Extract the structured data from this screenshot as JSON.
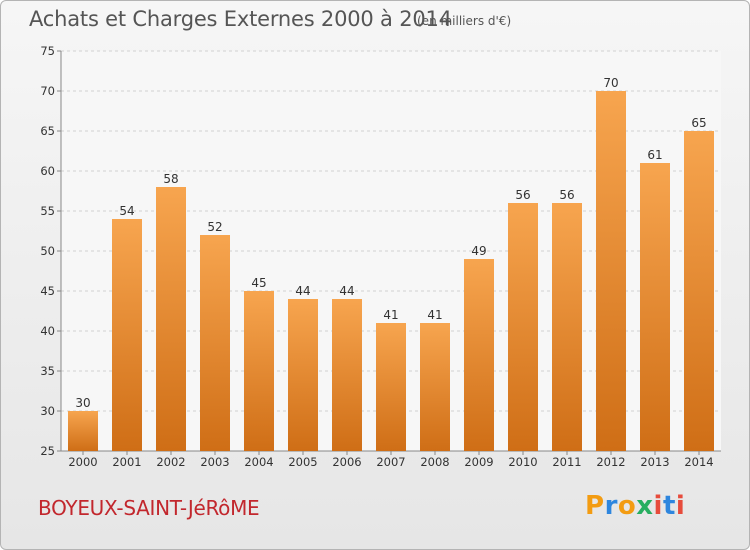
{
  "header": {
    "title": "Achats et Charges Externes 2000 à 2014",
    "unit": "(en milliers d'€)"
  },
  "footer": {
    "commune": "BOYEUX-SAINT-JéRôME",
    "logo": "Proxiti"
  },
  "colors": {
    "bar_light": "#f7a54f",
    "bar_dark": "#cf6e16",
    "title": "#555555",
    "commune": "#c2272d"
  },
  "chart_data": {
    "type": "bar",
    "categories": [
      "2000",
      "2001",
      "2002",
      "2003",
      "2004",
      "2005",
      "2006",
      "2007",
      "2008",
      "2009",
      "2010",
      "2011",
      "2012",
      "2013",
      "2014"
    ],
    "values": [
      30,
      54,
      58,
      52,
      45,
      44,
      44,
      41,
      41,
      49,
      56,
      56,
      70,
      61,
      65
    ],
    "title": "Achats et Charges Externes 2000 à 2014",
    "subtitle": "(en milliers d'€)",
    "xlabel": "",
    "ylabel": "",
    "ylim": [
      25,
      75
    ],
    "yticks": [
      25,
      30,
      35,
      40,
      45,
      50,
      55,
      60,
      65,
      70,
      75
    ],
    "grid": true,
    "data_labels": true
  }
}
